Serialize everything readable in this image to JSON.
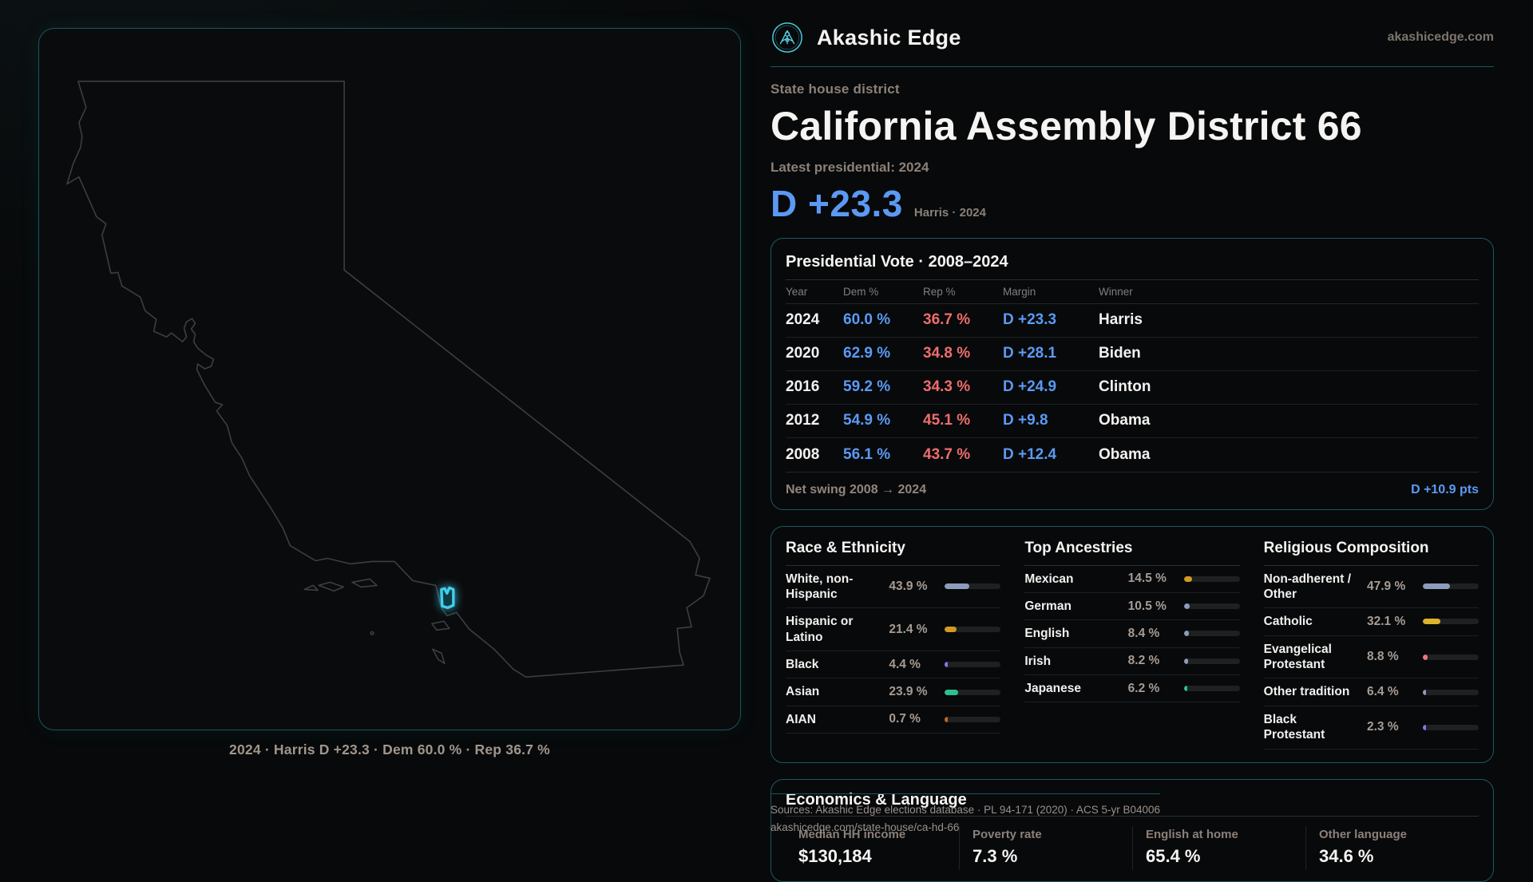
{
  "brand": {
    "name": "Akashic Edge",
    "domain": "akashicedge.com",
    "logo_icon": "akashic-sigil-icon"
  },
  "header": {
    "eyebrow": "State house district",
    "title": "California Assembly District 66",
    "latest_label": "Latest presidential: 2024",
    "margin_value": "D +23.3",
    "margin_context": "Harris · 2024"
  },
  "map": {
    "caption": "2024 · Harris D +23.3 · Dem 60.0 % · Rep 36.7 %"
  },
  "presidential_vote": {
    "title": "Presidential Vote · 2008–2024",
    "columns": [
      "Year",
      "Dem %",
      "Rep %",
      "Margin",
      "Winner"
    ],
    "rows": [
      {
        "year": "2024",
        "dem": "60.0 %",
        "rep": "36.7 %",
        "margin": "D +23.3",
        "winner": "Harris"
      },
      {
        "year": "2020",
        "dem": "62.9 %",
        "rep": "34.8 %",
        "margin": "D +28.1",
        "winner": "Biden"
      },
      {
        "year": "2016",
        "dem": "59.2 %",
        "rep": "34.3 %",
        "margin": "D +24.9",
        "winner": "Clinton"
      },
      {
        "year": "2012",
        "dem": "54.9 %",
        "rep": "45.1 %",
        "margin": "D +9.8",
        "winner": "Obama"
      },
      {
        "year": "2008",
        "dem": "56.1 %",
        "rep": "43.7 %",
        "margin": "D +12.4",
        "winner": "Obama"
      }
    ],
    "footer_label": "Net swing 2008 → 2024",
    "footer_value": "D +10.9 pts"
  },
  "demographics": {
    "sections": [
      {
        "id": "race",
        "title": "Race & Ethnicity",
        "rows": [
          {
            "label": "White, non-Hispanic",
            "value": "43.9 %",
            "pct": 43.9,
            "color": "#8d9cba"
          },
          {
            "label": "Hispanic or Latino",
            "value": "21.4 %",
            "pct": 21.4,
            "color": "#d29a21"
          },
          {
            "label": "Black",
            "value": "4.4 %",
            "pct": 4.4,
            "color": "#8a72ea"
          },
          {
            "label": "Asian",
            "value": "23.9 %",
            "pct": 23.9,
            "color": "#30bf92"
          },
          {
            "label": "AIAN",
            "value": "0.7 %",
            "pct": 0.7,
            "color": "#c4671e"
          }
        ]
      },
      {
        "id": "ancestries",
        "title": "Top Ancestries",
        "rows": [
          {
            "label": "Mexican",
            "value": "14.5 %",
            "pct": 14.5,
            "color": "#d29a21"
          },
          {
            "label": "German",
            "value": "10.5 %",
            "pct": 10.5,
            "color": "#8d9cba"
          },
          {
            "label": "English",
            "value": "8.4 %",
            "pct": 8.4,
            "color": "#8d9cba"
          },
          {
            "label": "Irish",
            "value": "8.2 %",
            "pct": 8.2,
            "color": "#8d9cba"
          },
          {
            "label": "Japanese",
            "value": "6.2 %",
            "pct": 6.2,
            "color": "#30bf92"
          }
        ]
      },
      {
        "id": "religion",
        "title": "Religious Composition",
        "rows": [
          {
            "label": "Non-adherent / Other",
            "value": "47.9 %",
            "pct": 47.9,
            "color": "#8d9cba"
          },
          {
            "label": "Catholic",
            "value": "32.1 %",
            "pct": 32.1,
            "color": "#dcb32b"
          },
          {
            "label": "Evangelical Protestant",
            "value": "8.8 %",
            "pct": 8.8,
            "color": "#e87878"
          },
          {
            "label": "Other tradition",
            "value": "6.4 %",
            "pct": 6.4,
            "color": "#8d9cba"
          },
          {
            "label": "Black Protestant",
            "value": "2.3 %",
            "pct": 2.3,
            "color": "#8a72ea"
          }
        ]
      }
    ]
  },
  "economics": {
    "title": "Economics & Language",
    "stats": [
      {
        "label": "Median HH income",
        "value": "$130,184"
      },
      {
        "label": "Poverty rate",
        "value": "7.3 %"
      },
      {
        "label": "English at home",
        "value": "65.4 %"
      },
      {
        "label": "Other language",
        "value": "34.6 %"
      }
    ]
  },
  "sources": {
    "line1": "Sources: Akashic Edge elections database · PL 94-171 (2020) · ACS 5-yr B04006",
    "line2": "akashicedge.com/state-house/ca-hd-66"
  },
  "colors": {
    "dem_blue": "#5b9af4",
    "rep_red": "#ee6d6d",
    "accent_teal": "#1d5864",
    "district_cyan": "#3fd0ee",
    "map_outline": "#3c3e41"
  }
}
